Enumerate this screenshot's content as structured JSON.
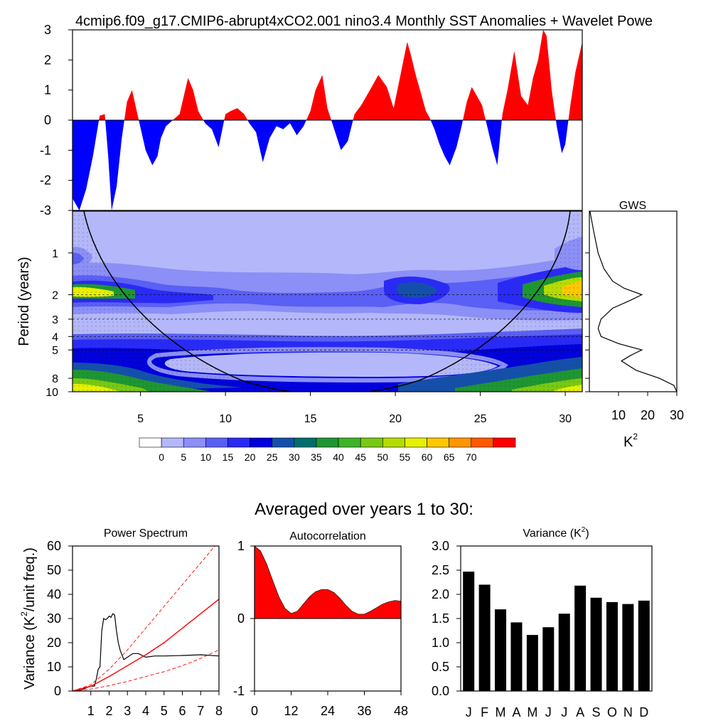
{
  "figure_title": "4cmip6.f09_g17.CMIP6-abrupt4xCO2.001 nino3.4 Monthly SST Anomalies + Wavelet Powe",
  "averaged_title": "Averaged over years 1 to 30:",
  "colors": {
    "positive": "#ff0000",
    "negative": "#0000ff",
    "axis": "#000000"
  },
  "chart_data": [
    {
      "id": "sst",
      "type": "area",
      "title": "",
      "ylabel": "",
      "xlim": [
        1,
        31
      ],
      "ylim": [
        -3,
        3
      ],
      "yticks": [
        "-3",
        "-2",
        "-1",
        "0",
        "1",
        "2",
        "3"
      ],
      "series": [
        {
          "name": "nino3.4 SST anomaly",
          "x": [
            1,
            1.4,
            1.8,
            2.2,
            2.6,
            2.9,
            3.1,
            3.3,
            3.6,
            3.9,
            4.2,
            4.5,
            4.9,
            5.3,
            5.7,
            6.0,
            6.2,
            6.5,
            6.9,
            7.3,
            7.8,
            8.1,
            8.4,
            8.8,
            9.2,
            9.6,
            10.0,
            10.3,
            10.7,
            11.1,
            11.4,
            11.8,
            12.2,
            12.6,
            13.0,
            13.4,
            13.8,
            14.2,
            14.6,
            15.0,
            15.3,
            15.7,
            16.0,
            16.4,
            16.8,
            17.2,
            17.6,
            18.0,
            18.5,
            19.0,
            19.5,
            19.9,
            20.3,
            20.7,
            20.9,
            21.2,
            21.5,
            21.8,
            22.0,
            22.3,
            22.6,
            22.9,
            23.2,
            23.6,
            23.9,
            24.2,
            24.5,
            24.8,
            25.1,
            25.4,
            25.7,
            26.0,
            26.3,
            26.6,
            27.0,
            27.4,
            27.8,
            28.1,
            28.4,
            28.7,
            28.9,
            29.2,
            29.5,
            29.8,
            30.0,
            30.3,
            30.6,
            31.0
          ],
          "values": [
            -2.6,
            -3.0,
            -2.3,
            -1.2,
            0.15,
            0.2,
            -1.2,
            -3.0,
            -2.2,
            -0.6,
            0.6,
            1.0,
            0.0,
            -1.0,
            -1.5,
            -1.2,
            -0.6,
            -0.2,
            0.0,
            0.2,
            1.4,
            1.0,
            0.3,
            -0.1,
            -0.3,
            -0.9,
            0.2,
            0.3,
            0.4,
            0.2,
            -0.1,
            -0.4,
            -1.4,
            -0.6,
            -0.2,
            -0.3,
            -0.1,
            -0.5,
            -0.2,
            0.3,
            1.0,
            1.5,
            0.4,
            -0.3,
            -1.0,
            -0.7,
            0.2,
            0.5,
            1.0,
            1.5,
            1.1,
            0.4,
            1.5,
            2.6,
            2.2,
            1.5,
            0.9,
            0.3,
            0.1,
            -0.3,
            -0.8,
            -1.2,
            -1.5,
            -0.9,
            -0.2,
            0.6,
            1.1,
            0.8,
            0.5,
            -0.2,
            -0.9,
            -1.5,
            0.2,
            1.0,
            2.3,
            0.8,
            0.5,
            1.4,
            2.0,
            3.0,
            2.8,
            1.0,
            -0.2,
            -1.1,
            -0.8,
            0.5,
            1.6,
            2.6
          ]
        }
      ]
    },
    {
      "id": "wavelet",
      "type": "heatmap",
      "title": "",
      "ylabel": "Period (years)",
      "xlim": [
        1,
        31
      ],
      "xticks": [
        "5",
        "10",
        "15",
        "20",
        "25",
        "30"
      ],
      "yticks": [
        "1",
        "2",
        "3",
        "4",
        "5",
        "8",
        "10"
      ],
      "ylim": [
        0.5,
        10
      ],
      "dashed_periods": [
        2,
        3,
        4,
        5
      ],
      "colorbar": {
        "labels": [
          "0",
          "5",
          "10",
          "15",
          "20",
          "25",
          "30",
          "35",
          "40",
          "45",
          "50",
          "55",
          "60",
          "65",
          "70"
        ],
        "colors": [
          "#ffffff",
          "#b4b8fa",
          "#8c8ff5",
          "#5a5ff5",
          "#2a2af5",
          "#0000dc",
          "#1450aa",
          "#006e6e",
          "#1e9632",
          "#3cb428",
          "#78c814",
          "#b4dc00",
          "#e6f000",
          "#ffc800",
          "#ff9600",
          "#ff5a00",
          "#ff0000"
        ]
      }
    },
    {
      "id": "gws",
      "type": "line",
      "title": "GWS",
      "xlabel": "K",
      "xlabel_sup": "2",
      "xlim": [
        0,
        30
      ],
      "xticks": [
        "10",
        "20",
        "30"
      ],
      "series": [
        {
          "name": "Global wavelet spectrum",
          "period": [
            0.5,
            0.7,
            1.0,
            1.3,
            1.6,
            1.8,
            2.0,
            2.2,
            2.5,
            3.0,
            3.5,
            4.0,
            4.5,
            5.0,
            5.5,
            6.0,
            7.0,
            8.0,
            9.0,
            10.0
          ],
          "values": [
            0.2,
            1.5,
            3.0,
            5.0,
            8.0,
            12.0,
            18.0,
            14.0,
            8.0,
            4.0,
            3.0,
            4.0,
            10.0,
            18.0,
            14.0,
            11.0,
            16.0,
            24.0,
            29.0,
            30.0
          ]
        }
      ]
    },
    {
      "id": "power",
      "type": "line",
      "title": "Power Spectrum",
      "ylabel": "Variance (K",
      "ylabel_sup": "2",
      "ylabel_tail": "/unit freq.)",
      "xlim": [
        0,
        8
      ],
      "ylim": [
        0,
        60
      ],
      "xticks": [
        "1",
        "2",
        "3",
        "4",
        "5",
        "6",
        "7",
        "8"
      ],
      "yticks": [
        "0",
        "10",
        "20",
        "30",
        "40",
        "50",
        "60"
      ],
      "series": [
        {
          "name": "spectrum",
          "x": [
            0,
            0.5,
            0.8,
            1.0,
            1.2,
            1.3,
            1.4,
            1.5,
            1.6,
            1.7,
            1.8,
            1.9,
            2.0,
            2.1,
            2.2,
            2.3,
            2.4,
            2.5,
            2.6,
            2.8,
            3.0,
            3.3,
            3.6,
            4.0,
            4.5,
            5.0,
            6.0,
            7.0,
            8.0
          ],
          "values": [
            0,
            0.5,
            1.5,
            2,
            2,
            5,
            9,
            10,
            25,
            30,
            29.5,
            30,
            31,
            30.5,
            32,
            31.5,
            25,
            20,
            17,
            13,
            14,
            15.5,
            15.5,
            14,
            14.5,
            14.5,
            14.7,
            15,
            14.5
          ]
        },
        {
          "name": "red noise",
          "x": [
            0,
            1,
            2,
            3,
            4,
            5,
            6,
            7,
            8
          ],
          "values": [
            0,
            2,
            6,
            10.5,
            15,
            20,
            26,
            32,
            38
          ]
        },
        {
          "name": "upper bound",
          "x": [
            0,
            1,
            2,
            3,
            4,
            5,
            6,
            7,
            8
          ],
          "values": [
            0,
            2.6,
            9,
            17,
            26,
            35,
            44,
            53,
            62
          ]
        },
        {
          "name": "lower bound",
          "x": [
            0,
            1,
            2,
            3,
            4,
            5,
            6,
            7,
            8
          ],
          "values": [
            0,
            0.8,
            2.2,
            4,
            6,
            8,
            10.5,
            13.5,
            17
          ]
        }
      ]
    },
    {
      "id": "autocorr",
      "type": "area",
      "title": "Autocorrelation",
      "xlim": [
        0,
        48
      ],
      "ylim": [
        -1,
        1
      ],
      "xticks": [
        "0",
        "12",
        "24",
        "36",
        "48"
      ],
      "yticks": [
        "-1",
        "0",
        "1"
      ],
      "series": [
        {
          "name": "autocorrelation",
          "x": [
            0,
            2,
            4,
            6,
            8,
            10,
            12,
            14,
            16,
            18,
            20,
            22,
            24,
            26,
            28,
            30,
            32,
            34,
            36,
            38,
            40,
            42,
            44,
            46,
            48
          ],
          "values": [
            1.0,
            0.93,
            0.75,
            0.52,
            0.3,
            0.14,
            0.07,
            0.1,
            0.2,
            0.3,
            0.37,
            0.4,
            0.4,
            0.36,
            0.28,
            0.18,
            0.1,
            0.06,
            0.06,
            0.1,
            0.15,
            0.2,
            0.23,
            0.25,
            0.24
          ]
        }
      ]
    },
    {
      "id": "variance",
      "type": "bar",
      "title": "Variance (K",
      "title_sup": "2",
      "title_tail": ")",
      "ylim": [
        0,
        3
      ],
      "yticks": [
        "0.0",
        "0.5",
        "1.0",
        "1.5",
        "2.0",
        "2.5",
        "3.0"
      ],
      "categories": [
        "J",
        "F",
        "M",
        "A",
        "M",
        "J",
        "J",
        "A",
        "S",
        "O",
        "N",
        "D"
      ],
      "values": [
        2.47,
        2.2,
        1.69,
        1.42,
        1.16,
        1.32,
        1.6,
        2.18,
        1.93,
        1.84,
        1.8,
        1.87
      ]
    }
  ]
}
